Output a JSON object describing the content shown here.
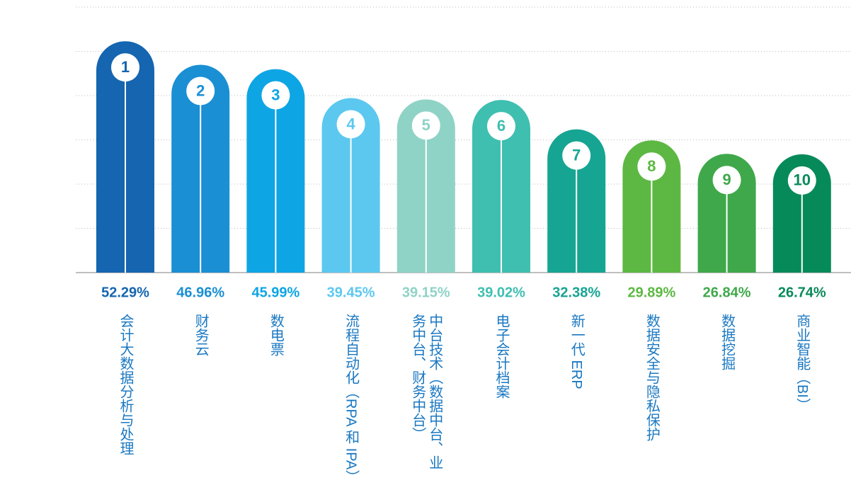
{
  "chart_data": {
    "type": "bar",
    "categories": [
      "会计大数据分析与处理",
      "财务云",
      "数电票",
      "流程自动化（RPA 和 IPA）",
      "中台技术（数据中台、业务中台、财务中台）",
      "电子会计档案",
      "新一代 ERP",
      "数据安全与隐私保护",
      "数据挖掘",
      "商业智能（BI）"
    ],
    "ranks": [
      "1",
      "2",
      "3",
      "4",
      "5",
      "6",
      "7",
      "8",
      "9",
      "10"
    ],
    "values": [
      52.29,
      46.96,
      45.99,
      39.45,
      39.15,
      39.02,
      32.38,
      29.89,
      26.84,
      26.74
    ],
    "value_labels": [
      "52.29%",
      "46.96%",
      "45.99%",
      "39.45%",
      "39.15%",
      "39.02%",
      "32.38%",
      "29.89%",
      "26.84%",
      "26.74%"
    ],
    "colors": [
      "#1565b0",
      "#1a8fd4",
      "#0ea5e4",
      "#5cc8ef",
      "#8fd3c6",
      "#3fbfb0",
      "#16a592",
      "#5db843",
      "#3fa84a",
      "#078a5a"
    ],
    "ylim": [
      0,
      60
    ],
    "yticks": [
      0,
      10,
      20,
      30,
      40,
      50,
      60
    ],
    "grid": true
  }
}
